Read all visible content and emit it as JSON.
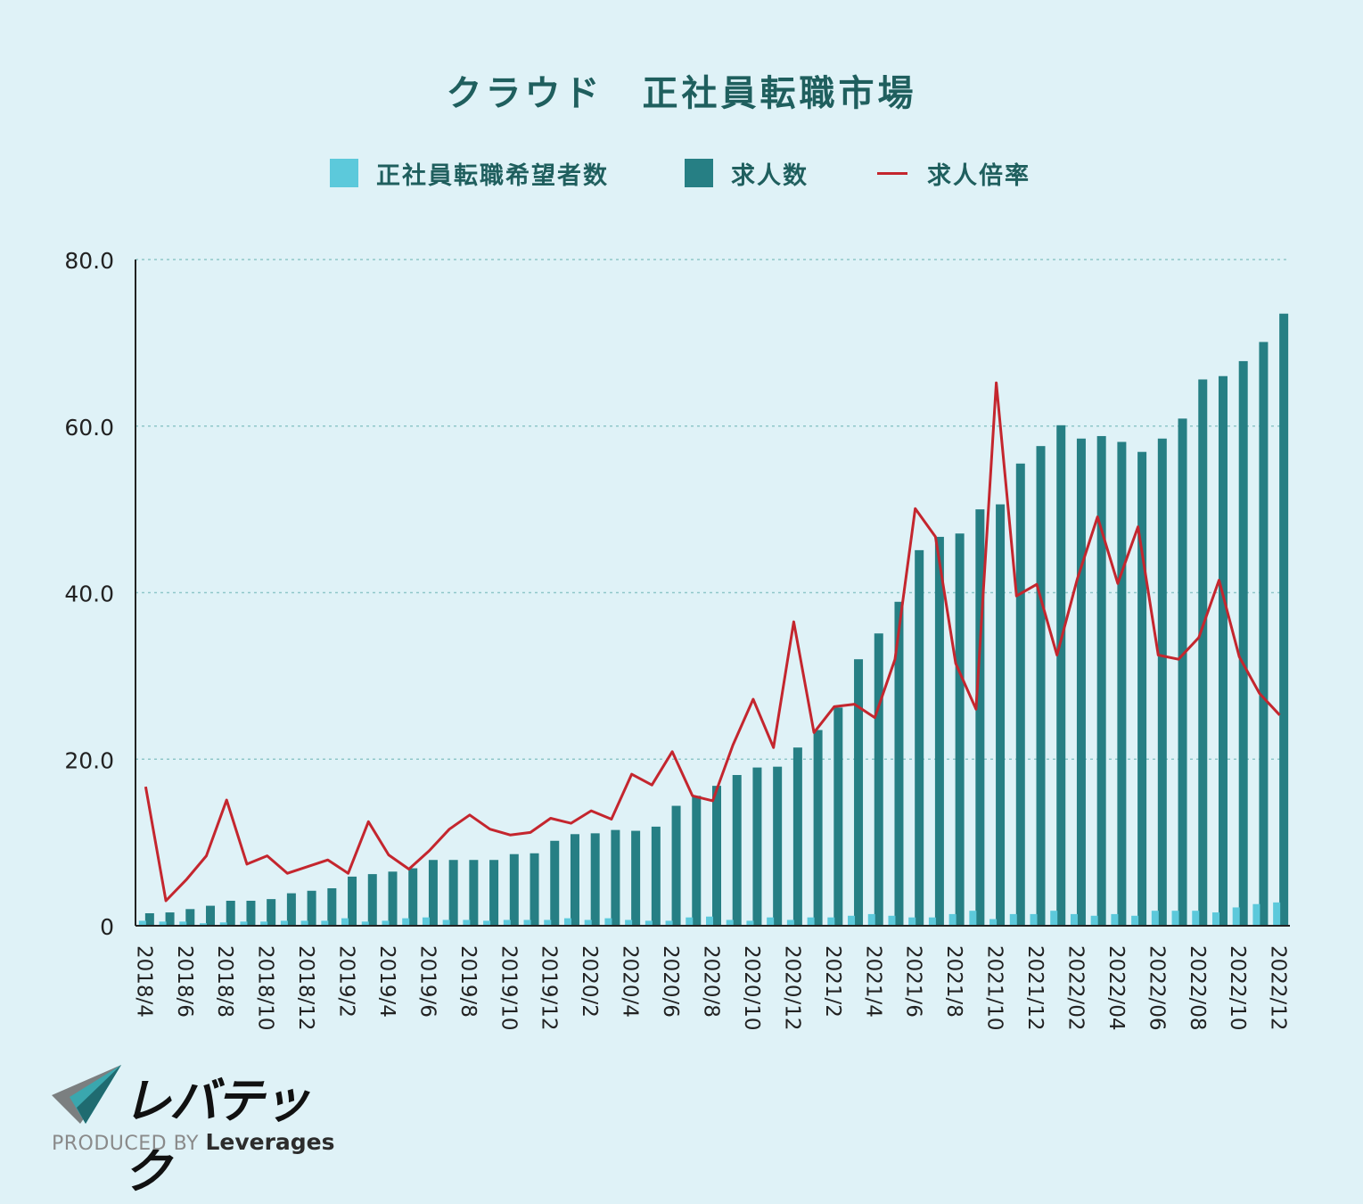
{
  "colors": {
    "seekers": "#5cc9db",
    "jobs": "#267f84",
    "ratio": "#c4262e",
    "title": "#1f5f5e",
    "grid": "#8fc7c9",
    "axis": "#222222"
  },
  "chart_data": {
    "type": "bar",
    "title": "クラウド　正社員転職市場",
    "xlabel": "",
    "ylabel": "",
    "ylim": [
      0,
      80
    ],
    "y_ticks": [
      "0",
      "20.0",
      "40.0",
      "60.0",
      "80.0"
    ],
    "y_tick_values": [
      0,
      20,
      40,
      60,
      80
    ],
    "categories": [
      "2018/4",
      "2018/5",
      "2018/6",
      "2018/7",
      "2018/8",
      "2018/9",
      "2018/10",
      "2018/11",
      "2018/12",
      "2019/1",
      "2019/2",
      "2019/3",
      "2019/4",
      "2019/5",
      "2019/6",
      "2019/7",
      "2019/8",
      "2019/9",
      "2019/10",
      "2019/11",
      "2019/12",
      "2020/1",
      "2020/2",
      "2020/3",
      "2020/4",
      "2020/5",
      "2020/6",
      "2020/7",
      "2020/8",
      "2020/9",
      "2020/10",
      "2020/11",
      "2020/12",
      "2021/1",
      "2021/2",
      "2021/3",
      "2021/4",
      "2021/5",
      "2021/6",
      "2021/7",
      "2021/8",
      "2021/9",
      "2021/10",
      "2021/11",
      "2021/12",
      "2022/01",
      "2022/02",
      "2022/03",
      "2022/04",
      "2022/05",
      "2022/06",
      "2022/07",
      "2022/08",
      "2022/09",
      "2022/10",
      "2022/11",
      "2022/12"
    ],
    "x_tick_labels": [
      "2018/4",
      "2018/6",
      "2018/8",
      "2018/10",
      "2018/12",
      "2019/2",
      "2019/4",
      "2019/6",
      "2019/8",
      "2019/10",
      "2019/12",
      "2020/2",
      "2020/4",
      "2020/6",
      "2020/8",
      "2020/10",
      "2020/12",
      "2021/2",
      "2021/4",
      "2021/6",
      "2021/8",
      "2021/10",
      "2021/12",
      "2022/02",
      "2022/04",
      "2022/06",
      "2022/08",
      "2022/10",
      "2022/12"
    ],
    "legend_position": "top-center",
    "grid": "horizontal-dashed",
    "series": [
      {
        "name": "正社員転職希望者数",
        "type": "bar",
        "values": [
          0.6,
          0.5,
          0.5,
          0.3,
          0.4,
          0.5,
          0.5,
          0.6,
          0.6,
          0.6,
          0.9,
          0.5,
          0.6,
          0.9,
          1.0,
          0.7,
          0.7,
          0.6,
          0.7,
          0.7,
          0.7,
          0.9,
          0.7,
          0.9,
          0.7,
          0.6,
          0.6,
          1.0,
          1.1,
          0.7,
          0.6,
          1.0,
          0.7,
          1.0,
          1.0,
          1.2,
          1.4,
          1.2,
          1.0,
          1.0,
          1.4,
          1.8,
          0.8,
          1.4,
          1.4,
          1.8,
          1.4,
          1.2,
          1.4,
          1.2,
          1.8,
          1.8,
          1.8,
          1.6,
          2.2,
          2.6,
          2.8
        ]
      },
      {
        "name": "求人数",
        "type": "bar",
        "values": [
          1.5,
          1.6,
          2.0,
          2.4,
          3.0,
          3.0,
          3.2,
          3.9,
          4.2,
          4.5,
          5.9,
          6.2,
          6.5,
          6.9,
          7.9,
          7.9,
          7.9,
          7.9,
          8.6,
          8.7,
          10.2,
          11.0,
          11.1,
          11.5,
          11.4,
          11.9,
          14.4,
          15.6,
          16.8,
          18.1,
          19.0,
          19.1,
          21.4,
          23.5,
          26.2,
          32.0,
          35.1,
          38.9,
          45.1,
          46.7,
          47.1,
          50.0,
          50.6,
          55.5,
          57.6,
          60.1,
          58.5,
          58.8,
          58.1,
          56.9,
          58.5,
          60.9,
          65.6,
          66.0,
          67.8,
          70.1,
          73.5
        ]
      },
      {
        "name": "求人倍率",
        "type": "line",
        "values": [
          16.7,
          3.0,
          5.5,
          8.4,
          15.1,
          7.4,
          8.4,
          6.3,
          7.1,
          7.9,
          6.3,
          12.5,
          8.5,
          6.8,
          9.0,
          11.6,
          13.3,
          11.6,
          10.9,
          11.2,
          12.9,
          12.3,
          13.8,
          12.8,
          18.2,
          16.9,
          20.9,
          15.6,
          15.0,
          21.7,
          27.2,
          21.4,
          36.5,
          23.2,
          26.3,
          26.6,
          25.0,
          32.0,
          50.1,
          46.7,
          31.5,
          26.0,
          65.2,
          39.6,
          41.0,
          32.5,
          41.6,
          49.1,
          41.1,
          47.9,
          32.5,
          32.0,
          34.6,
          41.5,
          32.3,
          27.9,
          25.3
        ]
      }
    ]
  },
  "legend": [
    {
      "label": "正社員転職希望者数",
      "kind": "square",
      "color": "#5cc9db"
    },
    {
      "label": "求人数",
      "kind": "square",
      "color": "#267f84"
    },
    {
      "label": "求人倍率",
      "kind": "line",
      "color": "#c4262e"
    }
  ],
  "logo": {
    "wordmark": "レバテック",
    "produced_by": "PRODUCED BY",
    "company": "Leverages",
    "colors": {
      "mark_dark": "#1f6b70",
      "mark_light": "#3aa7ae",
      "mark_grey": "#7b7f80"
    }
  }
}
